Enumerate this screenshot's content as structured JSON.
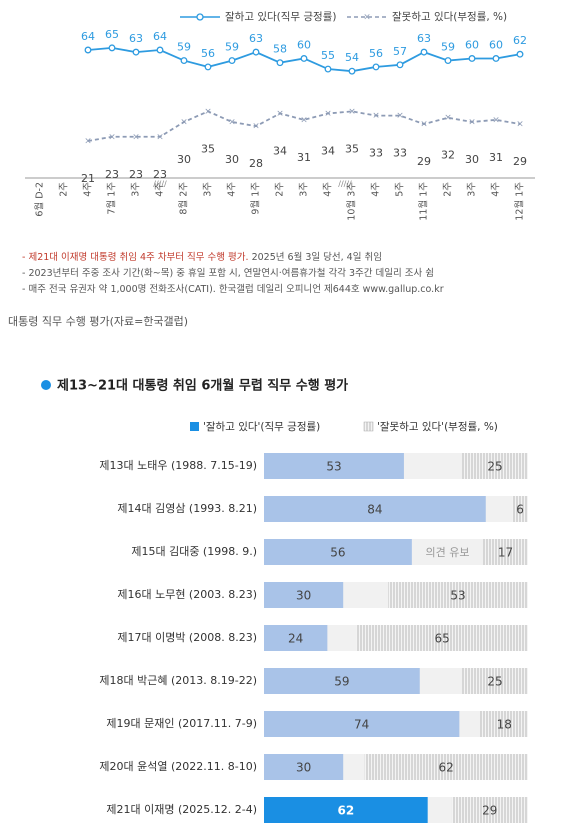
{
  "chart_data": [
    {
      "type": "line",
      "categories": [
        "6월 D-2",
        "2주",
        "4주",
        "7월 1주",
        "3주",
        "4주",
        "8월 2주",
        "3주",
        "4주",
        "9월 1주",
        "2주",
        "3주",
        "4주",
        "10월 3주",
        "4주",
        "5주",
        "11월 1주",
        "2주",
        "3주",
        "4주",
        "12월 1주"
      ],
      "series": [
        {
          "name": "잘하고 있다(직무 긍정률)",
          "color": "#2e9be0",
          "values": [
            null,
            null,
            64,
            65,
            63,
            64,
            59,
            56,
            59,
            63,
            58,
            60,
            55,
            54,
            56,
            57,
            63,
            59,
            60,
            60,
            62
          ]
        },
        {
          "name": "잘못하고 있다(부정률, %)",
          "color": "#8d9bb5",
          "values": [
            null,
            null,
            21,
            23,
            23,
            23,
            30,
            35,
            30,
            28,
            34,
            31,
            34,
            35,
            33,
            33,
            29,
            32,
            30,
            31,
            29
          ]
        }
      ],
      "ylim": [
        15,
        70
      ],
      "notes": [
        {
          "highlight": "- 제21대 이재명 대통령 취임 4주 차부터 직무 수행 평가.",
          "text": " 2025년 6월 3일 당선, 4일 취임"
        },
        {
          "text": "- 2023년부터 주중 조사 기간(화~목) 중 휴일 포함 시, 연말연시·여름휴가철 각각 3주간 데일리 조사 쉼"
        },
        {
          "text": "- 매주 전국 유권자 약 1,000명 전화조사(CATI). 한국갤럽 데일리 오피니언 제644호 www.gallup.co.kr"
        }
      ]
    },
    {
      "type": "hbar",
      "title": "제13~21대 대통령 취임 6개월 무렵 직무 수행 평가",
      "categories": [
        "제13대 노태우 (1988. 7.15-19)",
        "제14대 김영삼 (1993. 8.21)",
        "제15대 김대중 (1998. 9.)",
        "제16대 노무현 (2003. 8.23)",
        "제17대 이명박 (2008. 8.23)",
        "제18대 박근혜 (2013. 8.19-22)",
        "제19대 문재인 (2017.11. 7-9)",
        "제20대 윤석열 (2022.11. 8-10)",
        "제21대 이재명 (2025.12. 2-4)"
      ],
      "series": [
        {
          "name": "'잘하고 있다'(직무 긍정률)",
          "color": "#a9c3e8",
          "values": [
            53,
            84,
            56,
            30,
            24,
            59,
            74,
            30,
            62
          ]
        },
        {
          "name": "'잘못하고 있다'(부정률, %)",
          "color": "#c8c8c8",
          "values": [
            25,
            6,
            17,
            53,
            65,
            25,
            18,
            62,
            29
          ]
        }
      ],
      "highlight": {
        "index": 8,
        "color": "#1a8fe3"
      },
      "gap_label": {
        "index": 2,
        "text": "의견 유보"
      },
      "xlim": [
        0,
        100
      ]
    }
  ],
  "caption": "대통령 직무 수행 평가(자료=한국갤럽)"
}
